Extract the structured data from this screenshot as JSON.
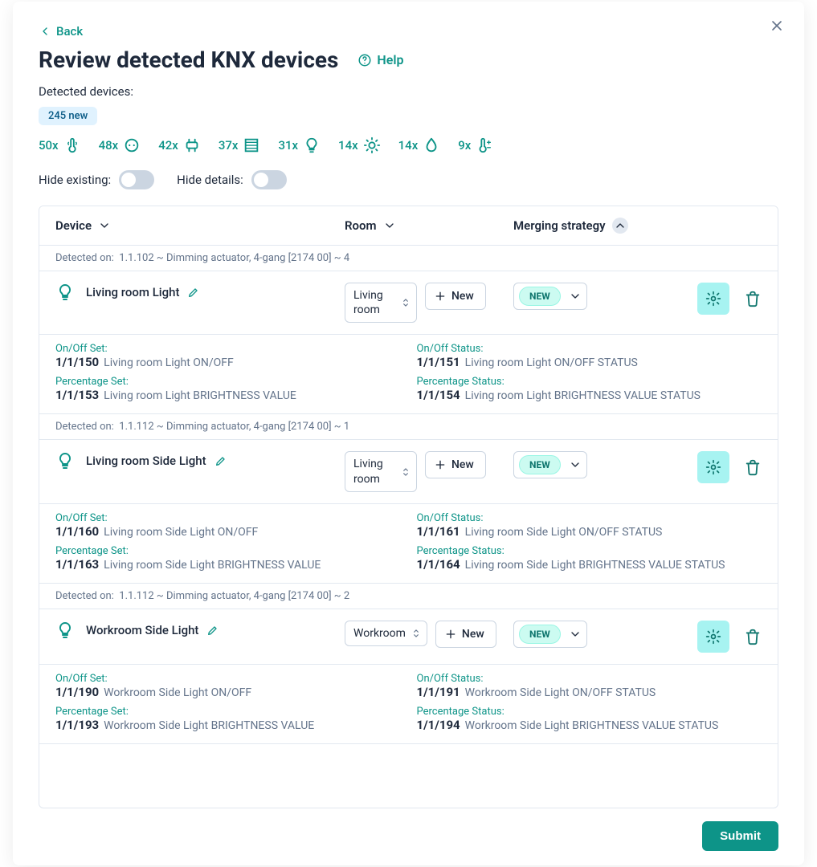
{
  "modal": {
    "back_label": "Back",
    "title": "Review detected KNX devices",
    "help_label": "Help",
    "detected_label": "Detected devices:",
    "new_count_badge": "245 new",
    "submit_label": "Submit",
    "type_counts": [
      {
        "count": "50x",
        "icon": "thermometer"
      },
      {
        "count": "48x",
        "icon": "outlet"
      },
      {
        "count": "42x",
        "icon": "switch"
      },
      {
        "count": "37x",
        "icon": "blinds"
      },
      {
        "count": "31x",
        "icon": "bulb"
      },
      {
        "count": "14x",
        "icon": "sun"
      },
      {
        "count": "14x",
        "icon": "drop"
      },
      {
        "count": "9x",
        "icon": "temp-adjust"
      }
    ],
    "toggles": {
      "hide_existing_label": "Hide existing:",
      "hide_existing_on": false,
      "hide_details_label": "Hide details:",
      "hide_details_on": false
    },
    "columns": {
      "device": "Device",
      "room": "Room",
      "merging": "Merging strategy"
    }
  },
  "devices": [
    {
      "detected_on_label": "Detected on:",
      "detected_on_value": "1.1.102 ~ Dimming actuator, 4-gang [2174 00] ~ 4",
      "name": "Living room Light",
      "icon": "bulb",
      "room": "Living room",
      "new_btn": "New",
      "merge": "NEW",
      "details": [
        {
          "label": "On/Off Set:",
          "addr": "1/1/150",
          "desc": "Living room Light ON/OFF"
        },
        {
          "label": "On/Off Status:",
          "addr": "1/1/151",
          "desc": "Living room Light ON/OFF STATUS"
        },
        {
          "label": "Percentage Set:",
          "addr": "1/1/153",
          "desc": "Living room Light BRIGHTNESS VALUE"
        },
        {
          "label": "Percentage Status:",
          "addr": "1/1/154",
          "desc": "Living room Light BRIGHTNESS VALUE STATUS"
        }
      ]
    },
    {
      "detected_on_label": "Detected on:",
      "detected_on_value": "1.1.112 ~ Dimming actuator, 4-gang [2174 00] ~ 1",
      "name": "Living room Side Light",
      "icon": "bulb",
      "room": "Living room",
      "new_btn": "New",
      "merge": "NEW",
      "details": [
        {
          "label": "On/Off Set:",
          "addr": "1/1/160",
          "desc": "Living room Side Light ON/OFF"
        },
        {
          "label": "On/Off Status:",
          "addr": "1/1/161",
          "desc": "Living room Side Light ON/OFF STATUS"
        },
        {
          "label": "Percentage Set:",
          "addr": "1/1/163",
          "desc": "Living room Side Light BRIGHTNESS VALUE"
        },
        {
          "label": "Percentage Status:",
          "addr": "1/1/164",
          "desc": "Living room Side Light BRIGHTNESS VALUE STATUS"
        }
      ]
    },
    {
      "detected_on_label": "Detected on:",
      "detected_on_value": "1.1.112 ~ Dimming actuator, 4-gang [2174 00] ~ 2",
      "name": "Workroom Side Light",
      "icon": "bulb",
      "room": "Workroom",
      "room_wide": true,
      "new_btn": "New",
      "merge": "NEW",
      "details": [
        {
          "label": "On/Off Set:",
          "addr": "1/1/190",
          "desc": "Workroom Side Light ON/OFF"
        },
        {
          "label": "On/Off Status:",
          "addr": "1/1/191",
          "desc": "Workroom Side Light ON/OFF STATUS"
        },
        {
          "label": "Percentage Set:",
          "addr": "1/1/193",
          "desc": "Workroom Side Light BRIGHTNESS VALUE"
        },
        {
          "label": "Percentage Status:",
          "addr": "1/1/194",
          "desc": "Workroom Side Light BRIGHTNESS VALUE STATUS"
        }
      ]
    }
  ],
  "colors": {
    "teal": "#0d9488",
    "teal_bg": "#ccfbf1",
    "border": "#cbd5e1"
  }
}
